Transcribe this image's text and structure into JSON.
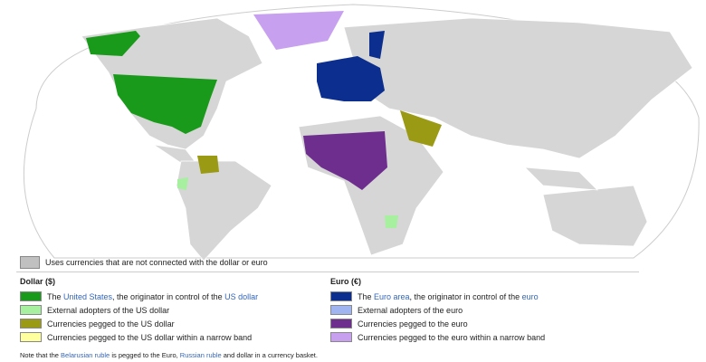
{
  "legend": {
    "other": {
      "color": "#c0c0c0",
      "parts": [
        "Uses currencies that are not connected with the dollar or euro"
      ]
    },
    "dollar": {
      "title": "Dollar ($)",
      "items": [
        {
          "color": "#1a9a1a",
          "parts": [
            "The ",
            "United States",
            ", the originator in control of the ",
            "US dollar"
          ]
        },
        {
          "color": "#a6f0a0",
          "parts": [
            "External adopters of the US dollar"
          ]
        },
        {
          "color": "#9a9a14",
          "parts": [
            "Currencies pegged to the US dollar"
          ]
        },
        {
          "color": "#ffffa0",
          "parts": [
            "Currencies pegged to the US dollar within a narrow band"
          ]
        }
      ]
    },
    "euro": {
      "title": "Euro (€)",
      "items": [
        {
          "color": "#0c2f8f",
          "parts": [
            "The ",
            "Euro area",
            ", the originator in control of the ",
            "euro"
          ]
        },
        {
          "color": "#9fb4f0",
          "parts": [
            "External adopters of the euro"
          ]
        },
        {
          "color": "#6e2e8e",
          "parts": [
            "Currencies pegged to the euro"
          ]
        },
        {
          "color": "#c8a0f0",
          "parts": [
            "Currencies pegged to the euro within a narrow band"
          ]
        }
      ]
    }
  },
  "note": {
    "parts": [
      "Note that the ",
      "Belarusian ruble",
      " is pegged to the Euro, ",
      "Russian ruble",
      " and dollar in a currency basket."
    ]
  }
}
